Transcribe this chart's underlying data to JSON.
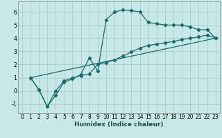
{
  "xlabel": "Humidex (Indice chaleur)",
  "bg_color": "#c8e8e8",
  "grid_color": "#a8cccc",
  "line_color": "#1a6b6b",
  "spine_color": "#888888",
  "xlim": [
    -0.5,
    23.5
  ],
  "ylim": [
    -1.7,
    6.8
  ],
  "xticks": [
    0,
    1,
    2,
    3,
    4,
    5,
    6,
    7,
    8,
    9,
    10,
    11,
    12,
    13,
    14,
    15,
    16,
    17,
    18,
    19,
    20,
    21,
    22,
    23
  ],
  "yticks": [
    -1,
    0,
    1,
    2,
    3,
    4,
    5,
    6
  ],
  "line1_x": [
    1,
    2,
    3,
    4,
    5,
    6,
    7,
    8,
    9,
    10,
    11,
    12,
    13,
    14,
    15,
    16,
    17,
    18,
    19,
    20,
    21,
    22,
    23
  ],
  "line1_y": [
    1.0,
    0.1,
    -1.2,
    -0.35,
    0.65,
    0.9,
    1.25,
    2.5,
    1.5,
    5.4,
    6.0,
    6.15,
    6.1,
    6.0,
    5.2,
    5.1,
    5.0,
    5.0,
    5.0,
    4.85,
    4.65,
    4.65,
    4.0
  ],
  "line2_x": [
    1,
    2,
    3,
    4,
    5,
    6,
    7,
    8,
    9,
    10,
    11,
    12,
    13,
    14,
    15,
    16,
    17,
    18,
    19,
    20,
    21,
    22,
    23
  ],
  "line2_y": [
    1.0,
    0.1,
    -1.2,
    0.0,
    0.75,
    1.0,
    1.15,
    1.3,
    2.0,
    2.15,
    2.35,
    2.65,
    2.95,
    3.25,
    3.45,
    3.55,
    3.65,
    3.75,
    3.9,
    4.0,
    4.1,
    4.25,
    4.0
  ],
  "line3_x": [
    1,
    23
  ],
  "line3_y": [
    1.0,
    4.0
  ],
  "marker": "D",
  "marker_size": 2.2,
  "linewidth": 0.9,
  "tick_fontsize": 5.5,
  "xlabel_fontsize": 6.5
}
